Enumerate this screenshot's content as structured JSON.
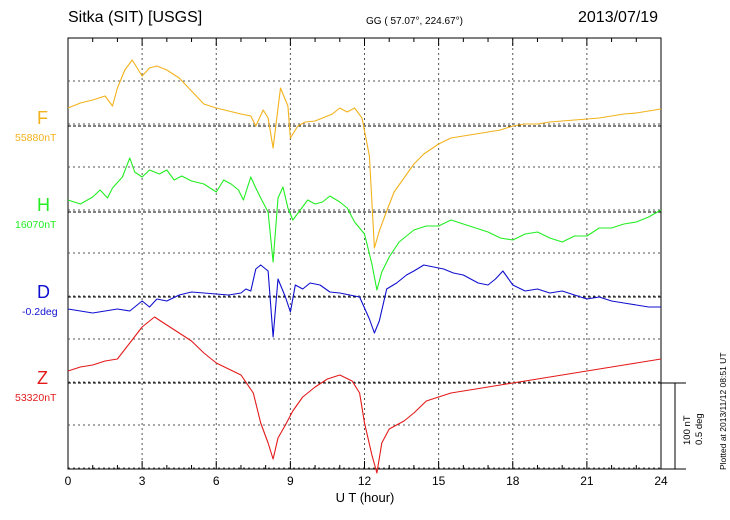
{
  "header": {
    "station": "Sitka (SIT)  [USGS]",
    "coords": "GG ( 57.07°, 224.67°)",
    "date": "2013/07/19"
  },
  "components": [
    {
      "letter": "F",
      "baseline": "55880nT",
      "color": "#f2b21c"
    },
    {
      "letter": "H",
      "baseline": "16070nT",
      "color": "#22ee22"
    },
    {
      "letter": "D",
      "baseline": "-0.2deg",
      "color": "#1010d0"
    },
    {
      "letter": "Z",
      "baseline": "53320nT",
      "color": "#e41a1a"
    }
  ],
  "scale": {
    "line1": "100 nT",
    "line2": "0.5 deg"
  },
  "plotted": "Plotted at 2013/11/12 08:51  UT",
  "chart_data": {
    "type": "line",
    "title": "Sitka (SIT)  [USGS]",
    "xlabel": "U T (hour)",
    "ylabel": "",
    "xlim": [
      0,
      24
    ],
    "x_ticks": [
      "0",
      "3",
      "6",
      "9",
      "12",
      "15",
      "18",
      "21",
      "24"
    ],
    "grid": true,
    "series": [
      {
        "name": "F",
        "baseline": "55880nT",
        "color": "#f2b21c",
        "points": [
          [
            0,
            -18
          ],
          [
            0.5,
            -23
          ],
          [
            1,
            -26
          ],
          [
            1.5,
            -30
          ],
          [
            1.8,
            -20
          ],
          [
            2,
            -38
          ],
          [
            2.3,
            -56
          ],
          [
            2.6,
            -66
          ],
          [
            3,
            -50
          ],
          [
            3.3,
            -58
          ],
          [
            3.6,
            -60
          ],
          [
            4,
            -56
          ],
          [
            4.5,
            -48
          ],
          [
            5,
            -35
          ],
          [
            5.5,
            -22
          ],
          [
            6,
            -18
          ],
          [
            6.5,
            -15
          ],
          [
            7,
            -12
          ],
          [
            7.4,
            -10
          ],
          [
            7.6,
            0
          ],
          [
            7.9,
            -16
          ],
          [
            8.1,
            -8
          ],
          [
            8.3,
            22
          ],
          [
            8.6,
            -38
          ],
          [
            8.9,
            -20
          ],
          [
            9,
            12
          ],
          [
            9.3,
            0
          ],
          [
            9.6,
            -4
          ],
          [
            10,
            -5
          ],
          [
            10.3,
            -8
          ],
          [
            10.7,
            -12
          ],
          [
            11,
            -18
          ],
          [
            11.3,
            -14
          ],
          [
            11.6,
            -18
          ],
          [
            11.9,
            -8
          ],
          [
            12.2,
            30
          ],
          [
            12.4,
            122
          ],
          [
            12.6,
            105
          ],
          [
            12.9,
            85
          ],
          [
            13.2,
            66
          ],
          [
            13.6,
            52
          ],
          [
            14,
            38
          ],
          [
            14.4,
            28
          ],
          [
            15,
            18
          ],
          [
            15.5,
            12
          ],
          [
            16,
            10
          ],
          [
            16.5,
            8
          ],
          [
            17,
            6
          ],
          [
            17.5,
            4
          ],
          [
            18,
            0
          ],
          [
            18.5,
            -2
          ],
          [
            19,
            -2
          ],
          [
            19.5,
            -4
          ],
          [
            20,
            -5
          ],
          [
            20.5,
            -6
          ],
          [
            21,
            -7
          ],
          [
            21.5,
            -8
          ],
          [
            22,
            -10
          ],
          [
            22.5,
            -12
          ],
          [
            23,
            -13
          ],
          [
            23.5,
            -15
          ],
          [
            24,
            -17
          ]
        ]
      },
      {
        "name": "H",
        "baseline": "16070nT",
        "color": "#22ee22",
        "points": [
          [
            0,
            -12
          ],
          [
            0.5,
            -8
          ],
          [
            1,
            -15
          ],
          [
            1.3,
            -22
          ],
          [
            1.6,
            -14
          ],
          [
            1.8,
            -24
          ],
          [
            2.2,
            -35
          ],
          [
            2.5,
            -54
          ],
          [
            2.7,
            -40
          ],
          [
            3,
            -35
          ],
          [
            3.3,
            -42
          ],
          [
            3.7,
            -38
          ],
          [
            4,
            -42
          ],
          [
            4.3,
            -32
          ],
          [
            4.6,
            -36
          ],
          [
            5,
            -31
          ],
          [
            5.5,
            -28
          ],
          [
            6,
            -20
          ],
          [
            6.3,
            -32
          ],
          [
            6.6,
            -28
          ],
          [
            6.9,
            -22
          ],
          [
            7.1,
            -12
          ],
          [
            7.4,
            -35
          ],
          [
            7.6,
            -24
          ],
          [
            7.8,
            -14
          ],
          [
            8.1,
            0
          ],
          [
            8.3,
            50
          ],
          [
            8.5,
            -14
          ],
          [
            8.7,
            -25
          ],
          [
            8.9,
            -4
          ],
          [
            9.1,
            8
          ],
          [
            9.4,
            -2
          ],
          [
            9.7,
            -12
          ],
          [
            10,
            -8
          ],
          [
            10.3,
            -10
          ],
          [
            10.6,
            -16
          ],
          [
            11,
            -10
          ],
          [
            11.3,
            -4
          ],
          [
            11.6,
            10
          ],
          [
            12,
            22
          ],
          [
            12.3,
            52
          ],
          [
            12.5,
            78
          ],
          [
            12.7,
            60
          ],
          [
            13,
            45
          ],
          [
            13.4,
            30
          ],
          [
            14,
            18
          ],
          [
            14.5,
            14
          ],
          [
            15,
            14
          ],
          [
            15.5,
            8
          ],
          [
            16,
            12
          ],
          [
            16.5,
            16
          ],
          [
            17,
            20
          ],
          [
            17.5,
            26
          ],
          [
            18,
            28
          ],
          [
            18.5,
            22
          ],
          [
            19,
            20
          ],
          [
            19.5,
            26
          ],
          [
            20,
            30
          ],
          [
            20.5,
            24
          ],
          [
            21,
            24
          ],
          [
            21.5,
            16
          ],
          [
            22,
            16
          ],
          [
            22.5,
            12
          ],
          [
            23,
            10
          ],
          [
            23.5,
            5
          ],
          [
            24,
            -2
          ]
        ]
      },
      {
        "name": "D",
        "baseline": "-0.2deg",
        "color": "#1010d0",
        "points": [
          [
            0,
            12
          ],
          [
            0.5,
            14
          ],
          [
            1,
            16
          ],
          [
            1.5,
            14
          ],
          [
            2,
            12
          ],
          [
            2.5,
            14
          ],
          [
            3,
            4
          ],
          [
            3.3,
            10
          ],
          [
            3.6,
            2
          ],
          [
            4,
            4
          ],
          [
            4.5,
            -2
          ],
          [
            5,
            -5
          ],
          [
            5.5,
            -4
          ],
          [
            6,
            -3
          ],
          [
            6.5,
            -2
          ],
          [
            7,
            -4
          ],
          [
            7.2,
            -8
          ],
          [
            7.4,
            -6
          ],
          [
            7.6,
            -28
          ],
          [
            7.8,
            -32
          ],
          [
            8.1,
            -26
          ],
          [
            8.3,
            40
          ],
          [
            8.5,
            -18
          ],
          [
            8.8,
            0
          ],
          [
            9,
            15
          ],
          [
            9.2,
            -12
          ],
          [
            9.5,
            -8
          ],
          [
            9.8,
            -14
          ],
          [
            10.2,
            -12
          ],
          [
            10.6,
            -5
          ],
          [
            11,
            -4
          ],
          [
            11.4,
            -2
          ],
          [
            11.8,
            0
          ],
          [
            12.2,
            22
          ],
          [
            12.4,
            36
          ],
          [
            12.6,
            24
          ],
          [
            12.9,
            -8
          ],
          [
            13.3,
            -14
          ],
          [
            13.7,
            -22
          ],
          [
            14,
            -26
          ],
          [
            14.4,
            -32
          ],
          [
            14.8,
            -30
          ],
          [
            15.2,
            -28
          ],
          [
            15.6,
            -24
          ],
          [
            16,
            -22
          ],
          [
            16.3,
            -18
          ],
          [
            16.6,
            -14
          ],
          [
            17,
            -12
          ],
          [
            17.3,
            -18
          ],
          [
            17.6,
            -26
          ],
          [
            18,
            -12
          ],
          [
            18.5,
            -6
          ],
          [
            19,
            -8
          ],
          [
            19.5,
            -4
          ],
          [
            20,
            -6
          ],
          [
            20.5,
            -2
          ],
          [
            21,
            2
          ],
          [
            21.5,
            0
          ],
          [
            22,
            4
          ],
          [
            22.5,
            6
          ],
          [
            23,
            8
          ],
          [
            23.5,
            10
          ],
          [
            24,
            10
          ]
        ]
      },
      {
        "name": "Z",
        "baseline": "53320nT",
        "color": "#e41a1a",
        "points": [
          [
            0,
            -12
          ],
          [
            0.5,
            -16
          ],
          [
            1,
            -18
          ],
          [
            1.5,
            -22
          ],
          [
            2,
            -24
          ],
          [
            2.5,
            -40
          ],
          [
            3,
            -56
          ],
          [
            3.5,
            -66
          ],
          [
            4,
            -58
          ],
          [
            4.5,
            -50
          ],
          [
            5,
            -42
          ],
          [
            5.5,
            -30
          ],
          [
            6,
            -20
          ],
          [
            6.5,
            -14
          ],
          [
            7,
            -8
          ],
          [
            7.5,
            10
          ],
          [
            7.8,
            40
          ],
          [
            8.1,
            60
          ],
          [
            8.3,
            76
          ],
          [
            8.5,
            55
          ],
          [
            8.8,
            42
          ],
          [
            9.1,
            28
          ],
          [
            9.5,
            14
          ],
          [
            10,
            4
          ],
          [
            10.5,
            -4
          ],
          [
            11,
            -8
          ],
          [
            11.5,
            -2
          ],
          [
            11.8,
            10
          ],
          [
            12,
            40
          ],
          [
            12.3,
            72
          ],
          [
            12.5,
            90
          ],
          [
            12.7,
            60
          ],
          [
            13,
            46
          ],
          [
            13.3,
            42
          ],
          [
            13.6,
            38
          ],
          [
            14,
            30
          ],
          [
            14.5,
            18
          ],
          [
            15,
            14
          ],
          [
            15.5,
            10
          ],
          [
            16,
            8
          ],
          [
            16.5,
            6
          ],
          [
            17,
            4
          ],
          [
            17.5,
            2
          ],
          [
            18,
            0
          ],
          [
            18.5,
            -2
          ],
          [
            19,
            -4
          ],
          [
            19.5,
            -6
          ],
          [
            20,
            -8
          ],
          [
            20.5,
            -10
          ],
          [
            21,
            -12
          ],
          [
            21.5,
            -14
          ],
          [
            22,
            -16
          ],
          [
            22.5,
            -18
          ],
          [
            23,
            -20
          ],
          [
            23.5,
            -22
          ],
          [
            24,
            -24
          ]
        ]
      }
    ]
  }
}
